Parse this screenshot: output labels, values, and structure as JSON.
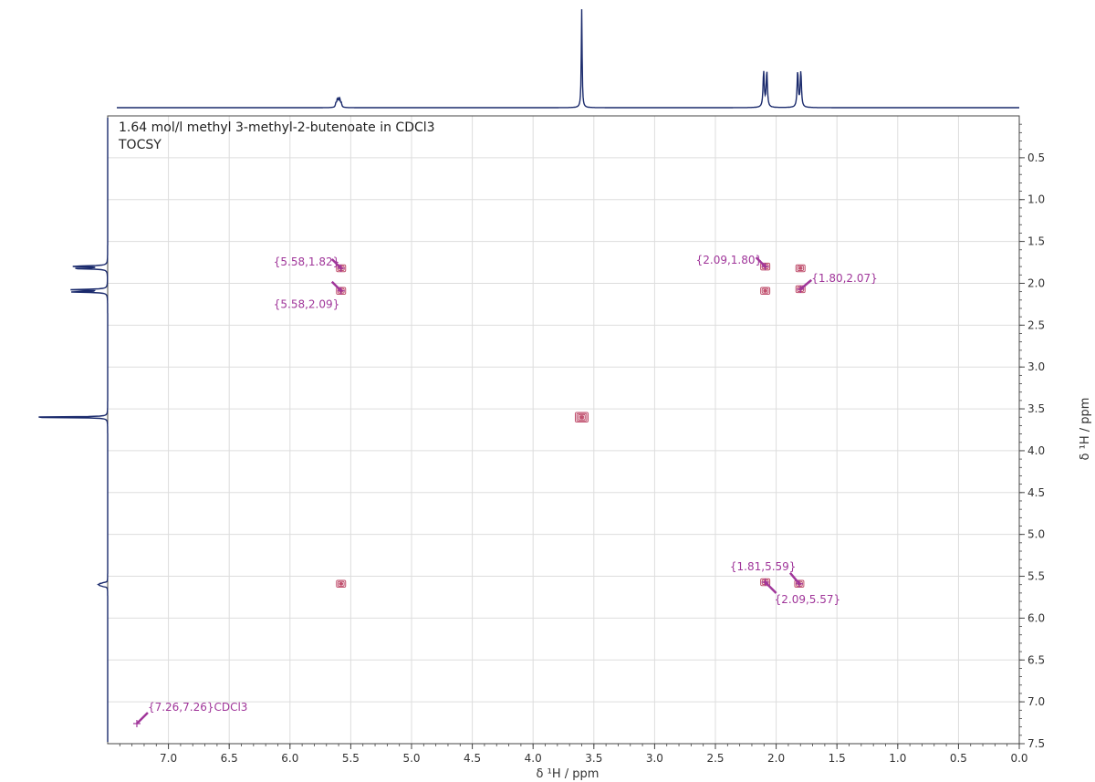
{
  "chart_data": {
    "type": "scatter",
    "experiment": "TOCSY",
    "title": "1.64 mol/l methyl 3-methyl-2-butenoate in CDCl3",
    "subtitle": "TOCSY",
    "xlabel": "δ ¹H / ppm",
    "ylabel": "δ ¹H / ppm",
    "xlim": [
      7.5,
      0.0
    ],
    "ylim": [
      0.0,
      7.5
    ],
    "x_reversed": true,
    "y_inverted": true,
    "grid": true,
    "x_ticks": [
      "7.0",
      "6.5",
      "6.0",
      "5.5",
      "5.0",
      "4.5",
      "4.0",
      "3.5",
      "3.0",
      "2.5",
      "2.0",
      "1.5",
      "1.0",
      "0.5",
      "0.0"
    ],
    "y_ticks": [
      "0.5",
      "1.0",
      "1.5",
      "2.0",
      "2.5",
      "3.0",
      "3.5",
      "4.0",
      "4.5",
      "5.0",
      "5.5",
      "6.0",
      "6.5",
      "7.0",
      "7.5"
    ],
    "colors": {
      "contour": "#c0506e",
      "label": "#a0369a",
      "trace": "#1a2a6c",
      "grid": "#dddddd"
    },
    "cross_peaks": [
      {
        "x": 5.58,
        "y": 1.82
      },
      {
        "x": 5.58,
        "y": 2.09
      },
      {
        "x": 2.09,
        "y": 1.8
      },
      {
        "x": 1.8,
        "y": 1.82
      },
      {
        "x": 2.09,
        "y": 2.09
      },
      {
        "x": 1.8,
        "y": 2.07
      },
      {
        "x": 3.6,
        "y": 3.6
      },
      {
        "x": 5.58,
        "y": 5.59
      },
      {
        "x": 2.09,
        "y": 5.57
      },
      {
        "x": 1.81,
        "y": 5.59
      }
    ],
    "annotations": [
      {
        "label": "{5.58,1.82}",
        "x": 5.58,
        "y": 1.82
      },
      {
        "label": "{5.58,2.09}",
        "x": 5.58,
        "y": 2.09
      },
      {
        "label": "{2.09,1.80}",
        "x": 2.09,
        "y": 1.8
      },
      {
        "label": "{1.80,2.07}",
        "x": 1.8,
        "y": 2.07
      },
      {
        "label": "{1.81,5.59}",
        "x": 1.81,
        "y": 5.59
      },
      {
        "label": "{2.09,5.57}",
        "x": 2.09,
        "y": 5.57
      },
      {
        "label": "{7.26,7.26}CDCl3",
        "x": 7.26,
        "y": 7.26
      }
    ],
    "projection_peaks": [
      {
        "shift": 5.6,
        "height": 0.08,
        "multiplet": "multiplet"
      },
      {
        "shift": 3.6,
        "height": 1.0,
        "multiplet": "singlet"
      },
      {
        "shift": 2.09,
        "height": 0.36,
        "multiplet": "doublet"
      },
      {
        "shift": 1.81,
        "height": 0.36,
        "multiplet": "doublet"
      }
    ]
  }
}
